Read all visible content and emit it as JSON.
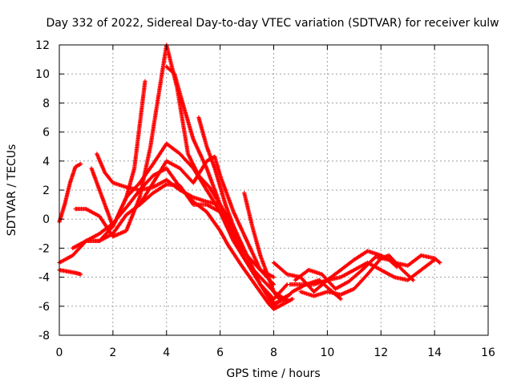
{
  "chart_data": {
    "type": "scatter",
    "title": "Day 332 of 2022, Sidereal Day-to-day VTEC variation (SDTVAR) for receiver kulw",
    "xlabel": "GPS time / hours",
    "ylabel": "SDTVAR / TECUs",
    "xlim": [
      0,
      16
    ],
    "ylim": [
      -8,
      12
    ],
    "xticks": [
      0,
      2,
      4,
      6,
      8,
      10,
      12,
      14,
      16
    ],
    "yticks": [
      -8,
      -6,
      -4,
      -2,
      0,
      2,
      4,
      6,
      8,
      10,
      12
    ],
    "grid": true,
    "marker": "+",
    "color": "#ff0000",
    "series": [
      {
        "name": "s1",
        "x": [
          0.0,
          0.2,
          0.4,
          0.6,
          0.8
        ],
        "y": [
          -0.2,
          1.0,
          2.5,
          3.6,
          3.8
        ]
      },
      {
        "name": "s2",
        "x": [
          0.0,
          0.3,
          0.6,
          0.8
        ],
        "y": [
          -3.5,
          -3.6,
          -3.7,
          -3.8
        ]
      },
      {
        "name": "s3",
        "x": [
          0.0,
          0.5,
          1.0,
          1.5,
          2.0,
          2.5,
          3.0,
          3.5,
          4.0,
          4.5,
          5.0,
          5.5,
          6.0,
          6.3,
          6.8,
          7.3,
          7.8,
          8.0,
          8.4,
          8.7
        ],
        "y": [
          -3.0,
          -2.5,
          -1.5,
          -1.0,
          -0.3,
          0.8,
          2.0,
          3.0,
          3.5,
          2.2,
          1.2,
          0.5,
          -0.8,
          -1.8,
          -3.2,
          -4.5,
          -5.8,
          -6.2,
          -5.8,
          -5.5
        ]
      },
      {
        "name": "s4",
        "x": [
          0.6,
          1.0,
          1.5,
          2.0,
          2.5,
          3.0,
          3.4,
          3.7,
          4.0,
          4.4,
          4.8,
          5.2,
          5.6,
          6.0,
          6.5,
          7.0,
          7.5,
          8.0,
          8.3,
          8.6
        ],
        "y": [
          0.7,
          0.7,
          0.2,
          -1.2,
          -0.8,
          1.5,
          5.0,
          8.5,
          12.0,
          9.0,
          4.5,
          3.0,
          2.2,
          1.0,
          -1.2,
          -3.0,
          -4.5,
          -6.0,
          -5.5,
          -5.2
        ]
      },
      {
        "name": "s5",
        "x": [
          1.2,
          1.6,
          2.0,
          2.5,
          2.8,
          3.0,
          3.2
        ],
        "y": [
          3.5,
          1.5,
          -0.5,
          1.5,
          3.5,
          6.5,
          9.5
        ]
      },
      {
        "name": "s6",
        "x": [
          1.4,
          1.7,
          2.0,
          2.5,
          3.0,
          3.5,
          4.0,
          4.5,
          5.0,
          5.5,
          6.0,
          6.5,
          7.0,
          7.5,
          8.0,
          8.5
        ],
        "y": [
          4.5,
          3.2,
          2.5,
          2.2,
          2.0,
          2.2,
          2.7,
          2.0,
          1.5,
          1.2,
          1.0,
          -0.5,
          -2.5,
          -4.5,
          -5.8,
          -5.5
        ]
      },
      {
        "name": "s7",
        "x": [
          0.5,
          1.0,
          1.5,
          2.0,
          2.5,
          3.0,
          3.5,
          4.0,
          4.5,
          5.0,
          5.5,
          6.0,
          6.5,
          7.0,
          7.5,
          8.0
        ],
        "y": [
          -2.0,
          -1.5,
          -1.5,
          -1.0,
          0.3,
          1.0,
          1.8,
          2.4,
          2.3,
          1.0,
          1.0,
          0.5,
          -1.5,
          -3.0,
          -4.0,
          -5.0
        ]
      },
      {
        "name": "s8",
        "x": [
          4.0,
          4.3,
          4.6,
          5.0,
          5.5,
          6.0,
          6.5,
          7.0,
          7.5,
          8.0
        ],
        "y": [
          10.5,
          10.0,
          8.0,
          5.5,
          3.5,
          1.0,
          -1.0,
          -2.5,
          -3.5,
          -4.0
        ]
      },
      {
        "name": "s9",
        "x": [
          1.0,
          1.5,
          2.0,
          2.5,
          3.0,
          3.5,
          4.0,
          4.5,
          5.0,
          5.5,
          6.0,
          6.5,
          7.0,
          7.5,
          8.0,
          8.5
        ],
        "y": [
          -1.5,
          -1.5,
          -0.5,
          1.5,
          2.5,
          3.8,
          5.2,
          4.5,
          3.5,
          2.0,
          0.5,
          -1.5,
          -3.0,
          -4.5,
          -5.5,
          -4.5
        ]
      },
      {
        "name": "s10",
        "x": [
          5.2,
          5.5,
          5.8,
          6.2,
          6.6
        ],
        "y": [
          7.0,
          5.0,
          3.5,
          1.0,
          -1.0
        ]
      },
      {
        "name": "s11",
        "x": [
          3.0,
          3.5,
          4.0,
          4.5,
          5.0,
          5.5,
          5.8,
          6.0,
          6.5,
          7.0,
          7.5,
          8.0
        ],
        "y": [
          1.0,
          2.5,
          4.0,
          3.5,
          2.5,
          4.0,
          4.3,
          3.0,
          0.5,
          -1.5,
          -3.5,
          -4.5
        ]
      },
      {
        "name": "s12",
        "x": [
          6.9,
          7.2,
          7.5,
          7.8,
          8.0,
          8.2
        ],
        "y": [
          1.8,
          -0.5,
          -2.5,
          -4.0,
          -5.0,
          -5.5
        ]
      },
      {
        "name": "s13",
        "x": [
          8.0,
          8.5,
          9.0,
          9.5,
          10.0,
          10.5,
          11.0,
          11.5,
          12.0,
          12.5,
          13.0,
          13.5,
          14.0,
          14.2
        ],
        "y": [
          -3.0,
          -3.8,
          -4.0,
          -5.0,
          -4.2,
          -3.5,
          -2.8,
          -2.2,
          -2.5,
          -3.0,
          -3.2,
          -2.5,
          -2.7,
          -3.0
        ]
      },
      {
        "name": "s14",
        "x": [
          8.6,
          9.0,
          9.5,
          10.0,
          10.5,
          11.0,
          11.5,
          12.0,
          12.5,
          13.0,
          13.5,
          14.0
        ],
        "y": [
          -4.5,
          -4.5,
          -4.5,
          -4.2,
          -4.0,
          -3.5,
          -3.0,
          -3.5,
          -4.0,
          -4.2,
          -3.5,
          -2.8
        ]
      },
      {
        "name": "s15",
        "x": [
          9.0,
          9.5,
          10.0,
          10.5,
          11.0,
          11.5,
          12.0,
          12.3,
          12.8,
          13.2
        ],
        "y": [
          -5.0,
          -5.3,
          -5.0,
          -5.2,
          -4.8,
          -3.8,
          -2.7,
          -2.5,
          -3.5,
          -4.2
        ]
      },
      {
        "name": "s16",
        "x": [
          8.0,
          8.4,
          8.7,
          9.2,
          9.7,
          10.0,
          10.5
        ],
        "y": [
          -5.0,
          -5.5,
          -5.0,
          -4.5,
          -4.2,
          -4.7,
          -5.5
        ]
      },
      {
        "name": "s17",
        "x": [
          8.8,
          9.3,
          9.8,
          10.3,
          10.8,
          11.3,
          11.8,
          12.3,
          12.6
        ],
        "y": [
          -4.2,
          -3.5,
          -3.8,
          -4.8,
          -4.3,
          -3.5,
          -2.6,
          -2.8,
          -3.3
        ]
      }
    ]
  }
}
